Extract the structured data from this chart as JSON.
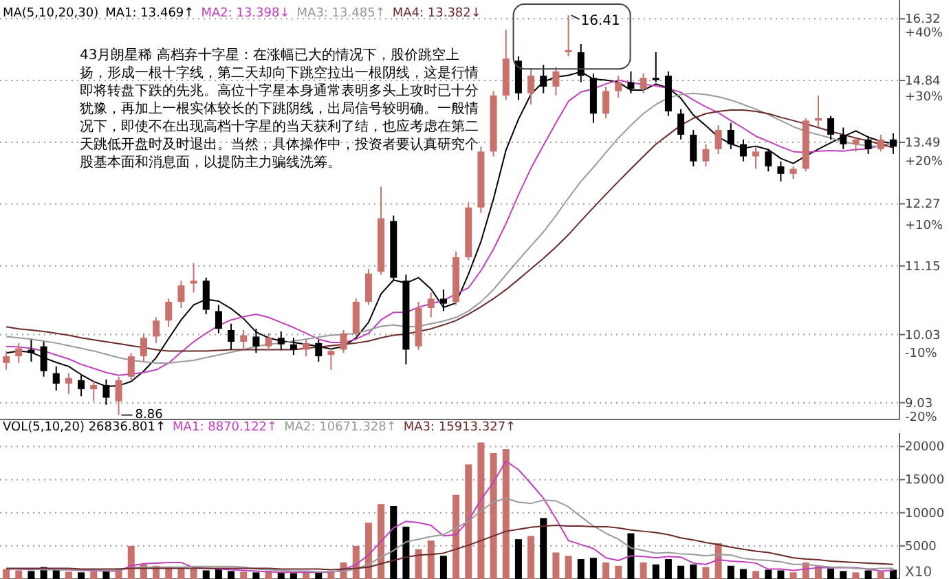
{
  "chart_data": [
    {
      "type": "candlestick",
      "legend": "top left",
      "legend_title": "MA(5,10,20,30)",
      "log": true,
      "grid": "y",
      "ylim": [
        8.8,
        16.8
      ],
      "yticks": [
        16.32,
        14.84,
        13.49,
        12.27,
        11.15,
        10.03,
        9.03
      ],
      "y2lim": [
        -20.43,
        45.09
      ],
      "y2ticks": [
        {
          "value": 40,
          "label": "+40%"
        },
        {
          "value": 30,
          "label": "+30%"
        },
        {
          "value": 20,
          "label": "+20%"
        },
        {
          "value": 10,
          "label": "+10%"
        },
        {
          "value": -10,
          "label": "-10%"
        },
        {
          "value": -20,
          "label": "-20%"
        }
      ],
      "annotations": [
        "43月朗星稀 高档弃十字星：在涨幅已大的情况下，股价跳空上扬，形成一根十字线，第二天却向下跳空拉出一根阴线，这是行情即将转盘下跌的先兆。高位十字星本身通常表明多头上攻时已十分犹豫，再加上一根实体较长的下跳阴线，出局信号较明确。一般情况下，即使不在出现高档十字星的当天获利了结，也应考虑在第二天跳低开盘时及时退出。当然，具体操作中，投资者要认真研究个股基本面和消息面，以提防主力骗线洗筹。",
        "16.41",
        "8.86"
      ],
      "categories": [
        null,
        null,
        null,
        null,
        null,
        null,
        null,
        null,
        null,
        null,
        null,
        null,
        null,
        null,
        null,
        null,
        null,
        null,
        null,
        null,
        null,
        null,
        null,
        null,
        null,
        null,
        null,
        null,
        null,
        null,
        null,
        null,
        null,
        null,
        null,
        null,
        null,
        null,
        null,
        null,
        null,
        null,
        null,
        null,
        null,
        null,
        null,
        null,
        null,
        null,
        null,
        null,
        null,
        null,
        null,
        null,
        null,
        null,
        null,
        null,
        null,
        null,
        null,
        null,
        null,
        null,
        null,
        null,
        null,
        null,
        null,
        null
      ],
      "ohlc": [
        [
          9.6,
          9.78,
          9.5,
          9.7
        ],
        [
          9.7,
          9.9,
          9.6,
          9.82
        ],
        [
          9.8,
          9.95,
          9.62,
          9.75
        ],
        [
          9.85,
          9.92,
          9.4,
          9.48
        ],
        [
          9.45,
          9.55,
          9.2,
          9.3
        ],
        [
          9.3,
          9.45,
          9.15,
          9.38
        ],
        [
          9.35,
          9.42,
          9.12,
          9.22
        ],
        [
          9.22,
          9.35,
          9.05,
          9.28
        ],
        [
          9.28,
          9.36,
          9.0,
          9.1
        ],
        [
          9.05,
          9.4,
          8.86,
          9.35
        ],
        [
          9.4,
          9.75,
          9.35,
          9.7
        ],
        [
          9.7,
          10.05,
          9.62,
          9.98
        ],
        [
          10.0,
          10.3,
          9.9,
          10.25
        ],
        [
          10.25,
          10.6,
          10.15,
          10.55
        ],
        [
          10.55,
          10.9,
          10.45,
          10.82
        ],
        [
          10.85,
          11.2,
          10.7,
          10.9
        ],
        [
          10.9,
          10.95,
          10.35,
          10.42
        ],
        [
          10.4,
          10.5,
          10.05,
          10.12
        ],
        [
          10.1,
          10.2,
          9.8,
          9.92
        ],
        [
          9.92,
          10.1,
          9.78,
          10.02
        ],
        [
          10.0,
          10.12,
          9.75,
          9.85
        ],
        [
          9.85,
          10.05,
          9.78,
          9.98
        ],
        [
          9.98,
          10.08,
          9.8,
          9.88
        ],
        [
          9.88,
          9.98,
          9.72,
          9.8
        ],
        [
          9.8,
          9.95,
          9.7,
          9.9
        ],
        [
          9.9,
          9.95,
          9.62,
          9.7
        ],
        [
          9.72,
          9.82,
          9.5,
          9.78
        ],
        [
          9.8,
          10.1,
          9.75,
          10.05
        ],
        [
          10.05,
          10.6,
          10.0,
          10.55
        ],
        [
          10.55,
          11.1,
          10.5,
          11.02
        ],
        [
          11.05,
          12.6,
          11.0,
          12.0
        ],
        [
          11.95,
          12.05,
          10.9,
          10.95
        ],
        [
          10.9,
          11.0,
          9.58,
          9.8
        ],
        [
          9.85,
          10.55,
          9.8,
          10.45
        ],
        [
          10.45,
          10.7,
          10.3,
          10.6
        ],
        [
          10.6,
          10.75,
          10.4,
          10.52
        ],
        [
          10.55,
          11.4,
          10.5,
          11.3
        ],
        [
          11.3,
          12.3,
          11.25,
          12.2
        ],
        [
          12.2,
          13.4,
          12.1,
          13.3
        ],
        [
          13.3,
          14.6,
          13.2,
          14.5
        ],
        [
          14.5,
          16.05,
          14.4,
          15.35
        ],
        [
          15.3,
          15.4,
          14.4,
          14.55
        ],
        [
          14.55,
          15.1,
          14.3,
          14.95
        ],
        [
          14.95,
          15.2,
          14.55,
          14.7
        ],
        [
          14.7,
          15.15,
          14.5,
          15.05
        ],
        [
          15.5,
          16.41,
          15.4,
          15.55
        ],
        [
          15.5,
          15.7,
          14.8,
          14.95
        ],
        [
          14.9,
          15.0,
          13.9,
          14.1
        ],
        [
          14.1,
          14.7,
          14.0,
          14.6
        ],
        [
          14.6,
          14.95,
          14.45,
          14.8
        ],
        [
          14.8,
          15.05,
          14.55,
          14.65
        ],
        [
          14.65,
          15.0,
          14.55,
          14.9
        ],
        [
          14.9,
          15.5,
          14.8,
          14.85
        ],
        [
          14.95,
          15.05,
          14.05,
          14.15
        ],
        [
          14.1,
          14.2,
          13.55,
          13.65
        ],
        [
          13.65,
          13.75,
          13.0,
          13.1
        ],
        [
          13.1,
          13.45,
          13.0,
          13.35
        ],
        [
          13.35,
          13.85,
          13.25,
          13.75
        ],
        [
          13.75,
          13.9,
          13.35,
          13.45
        ],
        [
          13.45,
          13.55,
          13.1,
          13.2
        ],
        [
          13.2,
          13.4,
          12.95,
          13.3
        ],
        [
          13.3,
          13.35,
          12.9,
          13.0
        ],
        [
          13.0,
          13.1,
          12.7,
          12.85
        ],
        [
          12.85,
          13.0,
          12.75,
          12.95
        ],
        [
          12.95,
          14.0,
          12.9,
          13.95
        ],
        [
          13.95,
          14.5,
          13.8,
          14.0
        ],
        [
          14.0,
          14.05,
          13.55,
          13.65
        ],
        [
          13.65,
          13.8,
          13.35,
          13.45
        ],
        [
          13.45,
          13.6,
          13.3,
          13.55
        ],
        [
          13.55,
          13.62,
          13.25,
          13.35
        ],
        [
          13.35,
          13.65,
          13.3,
          13.55
        ],
        [
          13.55,
          13.68,
          13.25,
          13.4
        ]
      ],
      "colors": [
        "#c9716d",
        "#c9716d",
        "#000000",
        "#000000",
        "#000000",
        "#c9716d",
        "#000000",
        "#c9716d",
        "#000000",
        "#c9716d",
        "#c9716d",
        "#c9716d",
        "#c9716d",
        "#c9716d",
        "#c9716d",
        "#c9716d",
        "#000000",
        "#000000",
        "#000000",
        "#c9716d",
        "#000000",
        "#c9716d",
        "#000000",
        "#000000",
        "#c9716d",
        "#000000",
        "#c9716d",
        "#c9716d",
        "#c9716d",
        "#c9716d",
        "#c9716d",
        "#000000",
        "#000000",
        "#c9716d",
        "#c9716d",
        "#000000",
        "#c9716d",
        "#c9716d",
        "#c9716d",
        "#c9716d",
        "#c9716d",
        "#000000",
        "#c9716d",
        "#000000",
        "#c9716d",
        "#c9716d",
        "#000000",
        "#000000",
        "#c9716d",
        "#c9716d",
        "#000000",
        "#c9716d",
        "#000000",
        "#000000",
        "#000000",
        "#000000",
        "#c9716d",
        "#c9716d",
        "#000000",
        "#000000",
        "#c9716d",
        "#000000",
        "#000000",
        "#c9716d",
        "#c9716d",
        "#c9716d",
        "#000000",
        "#000000",
        "#c9716d",
        "#000000",
        "#c9716d",
        "#000000"
      ],
      "series": [
        {
          "type": "line",
          "name": "MA1: 13.469↑",
          "color": "#000000",
          "values": [
            9.75,
            9.78,
            9.76,
            9.68,
            9.61,
            9.55,
            9.43,
            9.33,
            9.26,
            9.27,
            9.33,
            9.48,
            9.68,
            9.97,
            10.26,
            10.5,
            10.59,
            10.56,
            10.44,
            10.28,
            10.07,
            9.98,
            9.93,
            9.91,
            9.88,
            9.85,
            9.81,
            9.85,
            9.98,
            10.22,
            10.68,
            10.91,
            10.86,
            10.95,
            10.76,
            10.46,
            10.53,
            11.01,
            11.58,
            12.36,
            13.33,
            13.98,
            14.53,
            14.81,
            14.92,
            14.96,
            15.04,
            14.87,
            14.85,
            14.8,
            14.62,
            14.62,
            14.76,
            14.67,
            14.44,
            14.07,
            13.84,
            13.6,
            13.46,
            13.37,
            13.41,
            13.34,
            13.16,
            13.06,
            13.21,
            13.35,
            13.48,
            13.61,
            13.73,
            13.6,
            13.51,
            13.46
          ]
        },
        {
          "type": "line",
          "name": "MA2: 13.398↓",
          "color": "#c040c0",
          "values": [
            9.85,
            9.84,
            9.82,
            9.78,
            9.72,
            9.66,
            9.58,
            9.52,
            9.46,
            9.42,
            9.44,
            9.46,
            9.5,
            9.6,
            9.76,
            9.92,
            10.05,
            10.17,
            10.26,
            10.31,
            10.35,
            10.3,
            10.22,
            10.14,
            10.05,
            9.96,
            9.91,
            9.91,
            9.96,
            10.05,
            10.26,
            10.38,
            10.38,
            10.46,
            10.52,
            10.57,
            10.68,
            10.78,
            11.07,
            11.44,
            11.9,
            12.44,
            12.96,
            13.43,
            13.9,
            14.37,
            14.58,
            14.65,
            14.76,
            14.85,
            14.79,
            14.75,
            14.72,
            14.66,
            14.57,
            14.4,
            14.25,
            14.12,
            13.95,
            13.79,
            13.62,
            13.51,
            13.4,
            13.3,
            13.28,
            13.31,
            13.32,
            13.31,
            13.34,
            13.36,
            13.43,
            13.47
          ]
        },
        {
          "type": "line",
          "name": "MA3: 13.485↑",
          "color": "#9a9a9a",
          "values": [
            10.0,
            9.98,
            9.96,
            9.93,
            9.9,
            9.86,
            9.82,
            9.78,
            9.73,
            9.68,
            9.64,
            9.62,
            9.6,
            9.6,
            9.62,
            9.64,
            9.68,
            9.72,
            9.76,
            9.8,
            9.85,
            9.88,
            9.9,
            9.93,
            9.96,
            9.99,
            10.02,
            10.03,
            10.05,
            10.1,
            10.16,
            10.18,
            10.15,
            10.16,
            10.2,
            10.24,
            10.3,
            10.4,
            10.55,
            10.75,
            11.0,
            11.25,
            11.5,
            11.75,
            12.05,
            12.38,
            12.7,
            12.98,
            13.28,
            13.58,
            13.85,
            14.1,
            14.3,
            14.45,
            14.52,
            14.55,
            14.52,
            14.47,
            14.4,
            14.3,
            14.2,
            14.08,
            13.95,
            13.82,
            13.72,
            13.65,
            13.58,
            13.5,
            13.45,
            13.42,
            13.4,
            13.49
          ]
        },
        {
          "type": "line",
          "name": "MA4: 13.382↓",
          "color": "#6b2a2a",
          "values": [
            10.15,
            10.12,
            10.1,
            10.08,
            10.05,
            10.02,
            9.98,
            9.95,
            9.92,
            9.89,
            9.86,
            9.83,
            9.8,
            9.78,
            9.78,
            9.78,
            9.78,
            9.79,
            9.8,
            9.8,
            9.8,
            9.8,
            9.8,
            9.8,
            9.82,
            9.84,
            9.86,
            9.88,
            9.9,
            9.93,
            9.98,
            10.02,
            10.04,
            10.08,
            10.12,
            10.18,
            10.25,
            10.35,
            10.47,
            10.6,
            10.75,
            10.92,
            11.1,
            11.28,
            11.48,
            11.7,
            11.95,
            12.2,
            12.45,
            12.7,
            12.95,
            13.2,
            13.45,
            13.65,
            13.85,
            14.0,
            14.1,
            14.15,
            14.18,
            14.18,
            14.15,
            14.1,
            14.02,
            13.95,
            13.88,
            13.8,
            13.72,
            13.65,
            13.58,
            13.52,
            13.45,
            13.38
          ]
        }
      ]
    },
    {
      "type": "bar",
      "legend": "top left",
      "legend_title": "VOL(5,10,20)  26836.801↑",
      "grid": "y",
      "ylim": [
        0,
        22000
      ],
      "yticks": [
        5000,
        10000,
        15000,
        20000
      ],
      "annotations": [
        "X10"
      ],
      "categories": [
        null,
        null,
        null,
        null,
        null,
        null,
        null,
        null,
        null,
        null,
        null,
        null,
        null,
        null,
        null,
        null,
        null,
        null,
        null,
        null,
        null,
        null,
        null,
        null,
        null,
        null,
        null,
        null,
        null,
        null,
        null,
        null,
        null,
        null,
        null,
        null,
        null,
        null,
        null,
        null,
        null,
        null,
        null,
        null,
        null,
        null,
        null,
        null,
        null,
        null,
        null,
        null,
        null,
        null,
        null,
        null,
        null,
        null,
        null,
        null,
        null,
        null,
        null,
        null,
        null,
        null,
        null,
        null,
        null,
        null,
        null,
        null
      ],
      "values": [
        1500,
        1300,
        1200,
        1800,
        1400,
        1100,
        1000,
        1200,
        1300,
        1600,
        5000,
        2200,
        2000,
        1800,
        1600,
        1500,
        1300,
        1500,
        1200,
        1100,
        1000,
        1200,
        1000,
        900,
        1100,
        1000,
        1200,
        2500,
        5000,
        8500,
        11300,
        11000,
        7900,
        4500,
        5800,
        3500,
        12700,
        17300,
        20600,
        19000,
        19600,
        6000,
        6500,
        9200,
        4000,
        3500,
        3000,
        3200,
        2500,
        2000,
        6900,
        2500,
        2200,
        3000,
        2000,
        2200,
        1800,
        5400,
        2000,
        1500,
        1200,
        1400,
        1300,
        1000,
        2500,
        2000,
        1600,
        1200,
        1000,
        1300,
        1100,
        1400
      ],
      "colors": [
        "#c9716d",
        "#c9716d",
        "#000000",
        "#000000",
        "#000000",
        "#c9716d",
        "#000000",
        "#c9716d",
        "#000000",
        "#c9716d",
        "#c9716d",
        "#c9716d",
        "#c9716d",
        "#c9716d",
        "#c9716d",
        "#c9716d",
        "#000000",
        "#000000",
        "#000000",
        "#c9716d",
        "#000000",
        "#c9716d",
        "#000000",
        "#000000",
        "#c9716d",
        "#000000",
        "#c9716d",
        "#c9716d",
        "#c9716d",
        "#c9716d",
        "#c9716d",
        "#000000",
        "#000000",
        "#c9716d",
        "#c9716d",
        "#000000",
        "#c9716d",
        "#c9716d",
        "#c9716d",
        "#c9716d",
        "#c9716d",
        "#000000",
        "#c9716d",
        "#000000",
        "#c9716d",
        "#c9716d",
        "#000000",
        "#000000",
        "#c9716d",
        "#c9716d",
        "#000000",
        "#c9716d",
        "#000000",
        "#000000",
        "#000000",
        "#000000",
        "#c9716d",
        "#c9716d",
        "#000000",
        "#000000",
        "#c9716d",
        "#000000",
        "#000000",
        "#c9716d",
        "#c9716d",
        "#c9716d",
        "#000000",
        "#000000",
        "#c9716d",
        "#000000",
        "#c9716d",
        "#000000"
      ],
      "series": [
        {
          "type": "line",
          "name": "MA1: 8870.122↑",
          "color": "#c040c0",
          "values": [
            1500,
            1500,
            1400,
            1500,
            1400,
            1400,
            1300,
            1300,
            1200,
            1200,
            2000,
            2300,
            2400,
            2500,
            2500,
            1700,
            1600,
            1500,
            1400,
            1300,
            1200,
            1100,
            1000,
            1000,
            1000,
            1000,
            1000,
            1400,
            2200,
            3600,
            5700,
            7700,
            8700,
            8500,
            8100,
            6500,
            6700,
            8800,
            12000,
            14600,
            17800,
            16500,
            14400,
            12200,
            9100,
            5800,
            5200,
            4600,
            3200,
            2800,
            3500,
            3400,
            3200,
            3400,
            3300,
            2400,
            2200,
            2900,
            2700,
            2600,
            2400,
            1500,
            1500,
            1300,
            1500,
            1700,
            1700,
            1700,
            1700,
            1500,
            1200,
            1300
          ]
        },
        {
          "type": "line",
          "name": "MA2: 10671.328↑",
          "color": "#9a9a9a",
          "values": [
            1500,
            1500,
            1500,
            1400,
            1400,
            1400,
            1400,
            1400,
            1300,
            1300,
            1700,
            1800,
            1800,
            1800,
            1800,
            1900,
            1900,
            1900,
            1900,
            1800,
            1500,
            1400,
            1300,
            1200,
            1200,
            1100,
            1100,
            1200,
            1500,
            2200,
            3300,
            4300,
            5600,
            6000,
            6400,
            6700,
            7700,
            8700,
            10300,
            11600,
            12200,
            11600,
            11400,
            11900,
            11800,
            10900,
            9400,
            8000,
            6900,
            6000,
            4700,
            4300,
            3900,
            4000,
            3800,
            3700,
            3500,
            3700,
            3600,
            3100,
            2900,
            2800,
            2600,
            2200,
            2200,
            2000,
            1800,
            1800,
            1600,
            1500,
            1600,
            1600
          ]
        },
        {
          "type": "line",
          "name": "MA3: 15913.327↑",
          "color": "#6b2a2a",
          "values": [
            1600,
            1600,
            1600,
            1600,
            1600,
            1600,
            1500,
            1500,
            1500,
            1500,
            1600,
            1600,
            1600,
            1600,
            1600,
            1600,
            1600,
            1600,
            1600,
            1600,
            1600,
            1600,
            1500,
            1500,
            1500,
            1500,
            1400,
            1500,
            1600,
            1800,
            2300,
            2800,
            3300,
            3600,
            3700,
            3900,
            4500,
            5100,
            5800,
            6500,
            7200,
            7500,
            7800,
            8000,
            8100,
            8000,
            8000,
            7900,
            7900,
            7700,
            7400,
            7200,
            7000,
            6700,
            6200,
            5900,
            5500,
            5200,
            4800,
            4500,
            4200,
            4000,
            3600,
            3200,
            3000,
            2900,
            2700,
            2600,
            2500,
            2400,
            2300,
            2200
          ]
        }
      ]
    }
  ]
}
